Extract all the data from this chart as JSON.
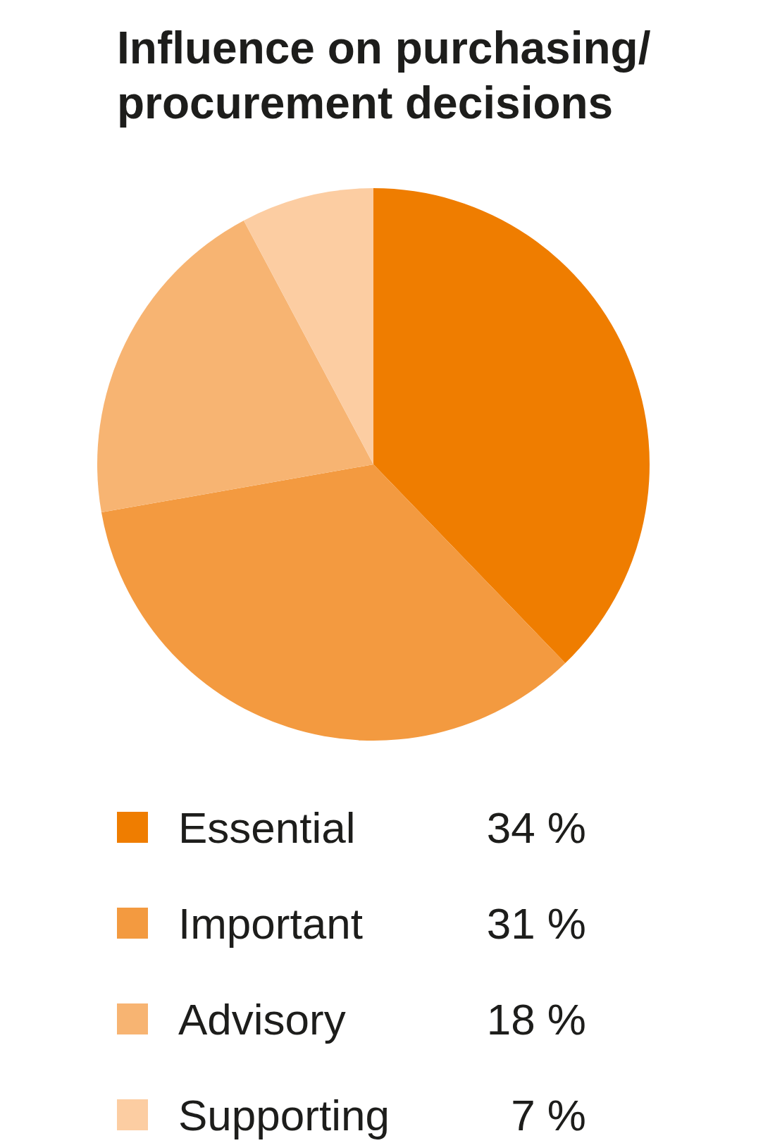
{
  "chart_data": {
    "type": "pie",
    "title": "Influence on purchasing/ procurement decisions",
    "categories": [
      "Essential",
      "Important",
      "Advisory",
      "Supporting"
    ],
    "values": [
      34,
      31,
      18,
      7
    ],
    "colors": [
      "#ef7d00",
      "#f39a40",
      "#f7b472",
      "#fccda2"
    ],
    "value_labels": [
      "34 %",
      "31 %",
      "18 %",
      "7 %"
    ],
    "legend": "bottom"
  }
}
